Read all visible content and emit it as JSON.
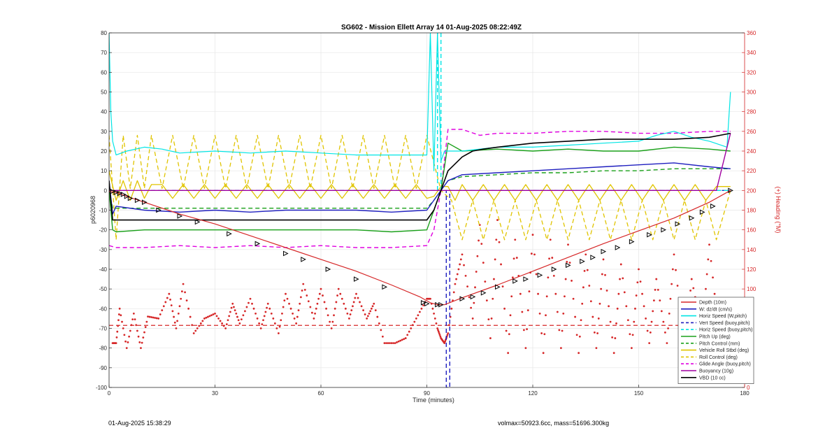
{
  "chart_data": {
    "type": "line",
    "title": "SG602 - Mission Ellett Array 14 01-Aug-2025 08:22:49Z",
    "xlabel": "Time (minutes)",
    "ylabel": "p6020968",
    "ylabel_right": "(+) Heading (°M)",
    "xlim": [
      0,
      180
    ],
    "ylim": [
      -100,
      80
    ],
    "ylim_right": [
      0,
      360
    ],
    "xticks": [
      "0",
      "30",
      "60",
      "90",
      "120",
      "150",
      "180"
    ],
    "yticks": [
      "80",
      "70",
      "60",
      "50",
      "40",
      "30",
      "20",
      "10",
      "0",
      "-10",
      "-20",
      "-30",
      "-40",
      "-50",
      "-60",
      "-70",
      "-80",
      "-90",
      "-100"
    ],
    "yticks_right": [
      "360",
      "340",
      "320",
      "300",
      "280",
      "260",
      "240",
      "220",
      "200",
      "180",
      "160",
      "140",
      "120",
      "100",
      "80",
      "60",
      "40",
      "20",
      "0"
    ],
    "grid": true,
    "legend_position": "bottom-right",
    "colors": {
      "depth": "#d62728",
      "w": "#1f1fbf",
      "horiz_speed": "#00e5e5",
      "vert_speed": "#1f1fbf",
      "pitch": "#1aa01a",
      "vehicle_roll": "#e0c400",
      "glide": "#e000e0",
      "buoyancy": "#a000a0",
      "vbd": "#000000",
      "heading": "#d62728"
    },
    "series": [
      {
        "name": "Depth (10m)",
        "style": "solid",
        "x": [
          0,
          2,
          5,
          10,
          20,
          30,
          40,
          50,
          60,
          70,
          80,
          88,
          91,
          93,
          95,
          100,
          110,
          120,
          130,
          140,
          150,
          160,
          170,
          176
        ],
        "y": [
          -0.5,
          -1,
          -3,
          -6,
          -12,
          -17,
          -23,
          -29,
          -35,
          -41,
          -48,
          -54,
          -57,
          -58,
          -58,
          -54.5,
          -48,
          -41,
          -34,
          -27,
          -20.5,
          -14,
          -6,
          0
        ]
      },
      {
        "name": "W: dz/dt (cm/s)",
        "style": "solid",
        "x": [
          0,
          1,
          2,
          10,
          20,
          30,
          40,
          50,
          60,
          70,
          80,
          90,
          92,
          94,
          96,
          100,
          110,
          120,
          130,
          140,
          150,
          160,
          170,
          176
        ],
        "y": [
          5,
          -12,
          -8,
          -10,
          -11,
          -10,
          -11,
          -10,
          -10,
          -10,
          -11,
          -10,
          -5,
          0,
          5,
          8,
          9,
          10,
          11,
          12,
          13,
          14,
          12,
          11
        ]
      },
      {
        "name": "Horiz Speed (W,pitch)",
        "style": "solid",
        "x": [
          0,
          0.5,
          1,
          2,
          5,
          10,
          15,
          20,
          30,
          40,
          50,
          60,
          70,
          80,
          90,
          91,
          92,
          93,
          94,
          95,
          100,
          110,
          120,
          130,
          140,
          150,
          155,
          160,
          165,
          170,
          175,
          176
        ],
        "y": [
          80,
          40,
          25,
          18,
          20,
          22,
          21,
          19,
          20,
          19,
          20,
          19,
          18,
          18,
          18,
          80,
          10,
          80,
          15,
          20,
          20,
          22,
          22,
          23,
          24,
          25,
          28,
          30,
          27,
          25,
          22,
          50
        ]
      },
      {
        "name": "Vert Speed (buoy,pitch)",
        "style": "dashed",
        "x": [
          0,
          95.5,
          95.5,
          96.5,
          96.5,
          176
        ],
        "y": [
          0,
          0,
          -100,
          -100,
          0,
          0
        ]
      },
      {
        "name": "Horiz Speed (buoy,pitch)",
        "style": "dashed",
        "x": [
          0,
          93,
          93,
          94,
          94,
          176
        ],
        "y": [
          0,
          0,
          80,
          80,
          0,
          0
        ]
      },
      {
        "name": "Pitch Up (deg)",
        "style": "solid",
        "x": [
          0,
          1,
          2,
          10,
          20,
          30,
          40,
          50,
          60,
          70,
          80,
          90,
          92,
          94,
          96,
          100,
          110,
          120,
          130,
          140,
          150,
          160,
          170,
          176
        ],
        "y": [
          0,
          -20,
          -21,
          -20,
          -20,
          -20,
          -20,
          -20,
          -20,
          -20,
          -21,
          -20,
          -10,
          0,
          24,
          20,
          21,
          20,
          21,
          20,
          20,
          22,
          21,
          20
        ]
      },
      {
        "name": "Pitch Control (mm)",
        "style": "dashed",
        "x": [
          0,
          1,
          2,
          90,
          92,
          94,
          96,
          100,
          110,
          120,
          130,
          140,
          150,
          160,
          170,
          176
        ],
        "y": [
          0,
          -9,
          -9,
          -9,
          -5,
          0,
          5,
          7,
          8,
          9,
          9,
          10,
          10,
          11,
          11,
          11
        ]
      },
      {
        "name": "Vehicle Roll Stbd (deg)",
        "style": "solid",
        "x": [
          0,
          2,
          4,
          6,
          8,
          10,
          12,
          15,
          18,
          21,
          24,
          27,
          30,
          33,
          36,
          39,
          42,
          45,
          48,
          51,
          54,
          57,
          60,
          63,
          66,
          69,
          72,
          75,
          78,
          81,
          84,
          87,
          90,
          92,
          94,
          96,
          98,
          100,
          103,
          106,
          109,
          112,
          115,
          118,
          121,
          124,
          127,
          130,
          133,
          136,
          139,
          142,
          145,
          148,
          151,
          154,
          157,
          160,
          163,
          166,
          169,
          172,
          176
        ],
        "y": [
          10,
          -5,
          5,
          -5,
          5,
          -4,
          3,
          3,
          -4,
          3,
          -4,
          3,
          -4,
          3,
          -4,
          3,
          -4,
          3,
          -4,
          3,
          -4,
          3,
          -4,
          3,
          -4,
          3,
          -4,
          3,
          -4,
          3,
          -4,
          3,
          -4,
          -3,
          2,
          2,
          -5,
          3,
          -5,
          3,
          -5,
          3,
          -5,
          3,
          -5,
          3,
          -5,
          3,
          -5,
          3,
          -5,
          3,
          -5,
          3,
          -5,
          3,
          -5,
          3,
          -5,
          3,
          -5,
          2,
          2
        ]
      },
      {
        "name": "Roll Control (deg)",
        "style": "dashed",
        "x": [
          0,
          2,
          4,
          6,
          8,
          10,
          12,
          15,
          18,
          21,
          24,
          27,
          30,
          33,
          36,
          39,
          42,
          45,
          48,
          51,
          54,
          57,
          60,
          63,
          66,
          69,
          72,
          75,
          78,
          81,
          84,
          87,
          90,
          94,
          97,
          100,
          103,
          106,
          109,
          112,
          115,
          118,
          121,
          124,
          127,
          130,
          133,
          136,
          139,
          142,
          145,
          148,
          151,
          154,
          157,
          160,
          163,
          166,
          169,
          172,
          176
        ],
        "y": [
          28,
          -25,
          28,
          1,
          28,
          1,
          28,
          1,
          28,
          1,
          28,
          1,
          28,
          1,
          28,
          1,
          28,
          1,
          28,
          1,
          28,
          1,
          28,
          1,
          28,
          1,
          28,
          1,
          28,
          1,
          28,
          1,
          28,
          0,
          -5,
          -25,
          -5,
          -25,
          -5,
          -25,
          -5,
          -25,
          -5,
          -25,
          -5,
          -25,
          -5,
          -25,
          -5,
          -25,
          -5,
          -25,
          -5,
          -25,
          -5,
          -25,
          -5,
          -25,
          -5,
          -25,
          0
        ]
      },
      {
        "name": "Glide Angle (buoy,pitch)",
        "style": "dashed",
        "x": [
          0,
          2,
          10,
          20,
          30,
          40,
          50,
          60,
          70,
          80,
          90,
          92,
          94,
          96,
          100,
          105,
          110,
          120,
          130,
          140,
          150,
          160,
          170,
          176
        ],
        "y": [
          -28,
          -29,
          -29,
          -28,
          -29,
          -28,
          -29,
          -28,
          -29,
          -29,
          -28,
          -20,
          0,
          31,
          31,
          28,
          29,
          29,
          30,
          30,
          29,
          29,
          30,
          30
        ]
      },
      {
        "name": "Buoyancy (10g)",
        "style": "solid",
        "x": [
          0,
          172,
          176
        ],
        "y": [
          0,
          0,
          29
        ]
      },
      {
        "name": "VBD (10 cc)",
        "style": "solid",
        "x": [
          0,
          1,
          2,
          90,
          92,
          94,
          96,
          100,
          103,
          106,
          110,
          120,
          130,
          140,
          150,
          160,
          170,
          176
        ],
        "y": [
          5,
          -15,
          -15,
          -15,
          -10,
          0,
          10,
          17,
          20,
          21,
          22,
          24,
          25,
          26,
          26,
          26,
          27,
          29
        ]
      }
    ],
    "heading_series": {
      "name": "Heading",
      "axis": "right",
      "x": [
        1,
        2,
        3,
        5,
        7,
        9,
        11,
        14,
        17,
        19,
        21,
        24,
        27,
        30,
        33,
        35,
        37,
        40,
        43,
        45,
        48,
        50,
        53,
        55,
        58,
        60,
        63,
        65,
        68,
        70,
        73,
        75,
        78,
        81,
        84,
        87,
        90,
        91,
        93,
        94,
        95,
        96,
        98,
        100,
        103,
        105,
        108,
        110,
        113,
        115,
        118,
        120,
        123,
        125,
        128,
        130,
        133,
        135,
        138,
        140,
        143,
        145,
        148,
        150,
        153,
        155,
        158,
        160,
        163,
        165,
        168,
        170,
        173,
        175
      ],
      "y": [
        45,
        45,
        80,
        40,
        75,
        40,
        72,
        70,
        95,
        60,
        105,
        55,
        70,
        75,
        60,
        85,
        65,
        90,
        60,
        85,
        55,
        95,
        65,
        105,
        70,
        100,
        60,
        100,
        70,
        95,
        70,
        85,
        45,
        45,
        50,
        70,
        90,
        90,
        60,
        50,
        45,
        55,
        105,
        135,
        70,
        165,
        50,
        170,
        35,
        150,
        40,
        155,
        35,
        150,
        40,
        145,
        35,
        135,
        40,
        130,
        35,
        125,
        40,
        120,
        45,
        110,
        45,
        135,
        40,
        110,
        55,
        145,
        45,
        90
      ]
    },
    "heading_reference": {
      "style": "dashed",
      "y": 63
    },
    "markers": {
      "description_none": "",
      "x": [
        1,
        2,
        3,
        4,
        5,
        6,
        8,
        10,
        14,
        20,
        25,
        34,
        42,
        50,
        55,
        62,
        70,
        78,
        89,
        90,
        93,
        94,
        100,
        103,
        106,
        110,
        115,
        118,
        122,
        126,
        130,
        134,
        137,
        140,
        144,
        148,
        153,
        157,
        161,
        165,
        168,
        171,
        176
      ],
      "y": [
        -0.5,
        -1,
        -1.5,
        -2,
        -3,
        -4,
        -5,
        -6,
        -10,
        -13,
        -16,
        -22,
        -27,
        -32,
        -35,
        -40,
        -45,
        -49,
        -57,
        -57.5,
        -58,
        -58,
        -55,
        -54,
        -52,
        -49,
        -46,
        -45,
        -43,
        -40,
        -38,
        -36,
        -34,
        -31,
        -29,
        -26,
        -22.5,
        -20,
        -17,
        -14,
        -11,
        -8,
        0
      ]
    },
    "legend": [
      "Depth (10m)",
      "W: dz/dt (cm/s)",
      "Horiz Speed (W,pitch)",
      "Vert Speed (buoy,pitch)",
      "Horiz Speed (buoy,pitch)",
      "Pitch Up (deg)",
      "Pitch Control (mm)",
      "Vehicle Roll Stbd (deg)",
      "Roll Control (deg)",
      "Glide Angle (buoy,pitch)",
      "Buoyancy (10g)",
      "VBD (10 cc)"
    ]
  },
  "footer": {
    "timestamp": "01-Aug-2025 15:38:29",
    "volmax": "volmax=50923.6cc, mass=51696.300kg"
  }
}
